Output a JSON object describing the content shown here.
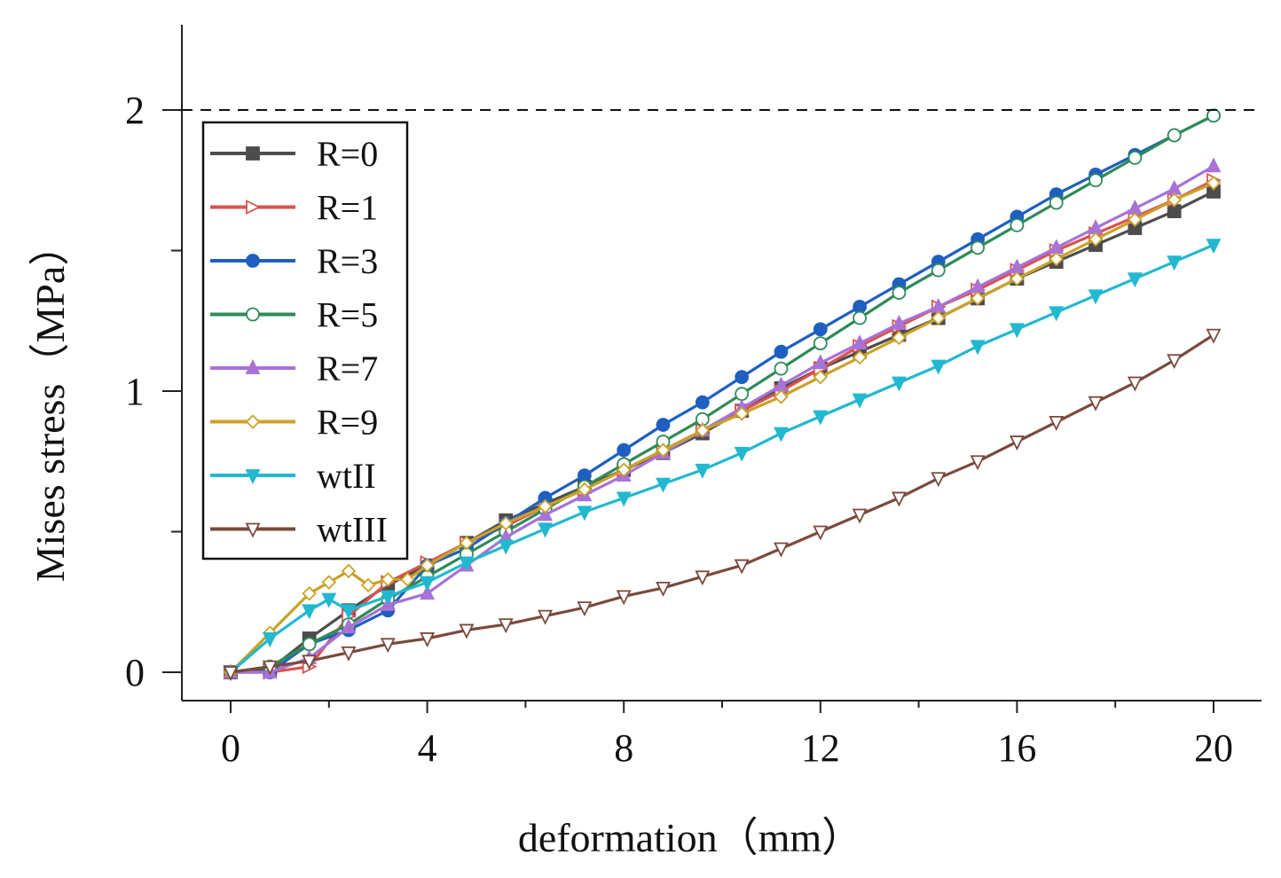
{
  "chart_data": {
    "type": "line",
    "title": "",
    "xlabel": "deformation（mm）",
    "ylabel": "Mises stress（MPa）",
    "xlim": [
      -1,
      20.8
    ],
    "ylim": [
      -0.1,
      2.3
    ],
    "xticks": [
      0,
      4,
      8,
      12,
      16,
      20
    ],
    "xtick_labels": [
      "0",
      "4",
      "8",
      "12",
      "16",
      "20"
    ],
    "yticks": [
      0,
      1,
      2
    ],
    "ytick_labels": [
      "0",
      "1",
      "2"
    ],
    "minor_xticks": [
      2,
      6,
      10,
      14,
      18
    ],
    "minor_yticks": [
      0.5,
      1.5
    ],
    "reference_line": {
      "y": 2,
      "style": "dashed"
    },
    "legend_position": "top-left",
    "series": [
      {
        "name": "R=0",
        "color": "#4d4d4d",
        "marker": "square-filled",
        "x": [
          0,
          0.8,
          1.6,
          2.4,
          3.2,
          4,
          4.8,
          5.6,
          6.4,
          7.2,
          8,
          8.8,
          9.6,
          10.4,
          11.2,
          12,
          12.8,
          13.6,
          14.4,
          15.2,
          16,
          16.8,
          17.6,
          18.4,
          19.2,
          20
        ],
        "y": [
          0,
          0.01,
          0.12,
          0.22,
          0.31,
          0.38,
          0.46,
          0.54,
          0.6,
          0.66,
          0.72,
          0.78,
          0.85,
          0.93,
          1.01,
          1.08,
          1.14,
          1.2,
          1.26,
          1.33,
          1.4,
          1.46,
          1.52,
          1.58,
          1.64,
          1.71
        ]
      },
      {
        "name": "R=1",
        "color": "#d9534f",
        "marker": "triangle-right-open",
        "x": [
          0,
          0.8,
          1.6,
          2.4,
          3.2,
          4,
          4.8,
          5.6,
          6.4,
          7.2,
          8,
          8.8,
          9.6,
          10.4,
          11.2,
          12,
          12.8,
          13.6,
          14.4,
          15.2,
          16,
          16.8,
          17.6,
          18.4,
          19.2,
          20
        ],
        "y": [
          0,
          0,
          0.02,
          0.2,
          0.32,
          0.39,
          0.46,
          0.52,
          0.59,
          0.65,
          0.72,
          0.79,
          0.86,
          0.93,
          1.0,
          1.08,
          1.16,
          1.23,
          1.3,
          1.36,
          1.43,
          1.5,
          1.56,
          1.62,
          1.68,
          1.75
        ]
      },
      {
        "name": "R=3",
        "color": "#1f5fbf",
        "marker": "circle-filled",
        "x": [
          0,
          0.8,
          1.6,
          2.4,
          3.2,
          4,
          4.8,
          5.6,
          6.4,
          7.2,
          8,
          8.8,
          9.6,
          10.4,
          11.2,
          12,
          12.8,
          13.6,
          14.4,
          15.2,
          16,
          16.8,
          17.6,
          18.4,
          19.2,
          20
        ],
        "y": [
          0,
          0,
          0.1,
          0.15,
          0.22,
          0.38,
          0.44,
          0.53,
          0.62,
          0.7,
          0.79,
          0.88,
          0.96,
          1.05,
          1.14,
          1.22,
          1.3,
          1.38,
          1.46,
          1.54,
          1.62,
          1.7,
          1.77,
          1.84,
          1.91,
          1.98
        ]
      },
      {
        "name": "R=5",
        "color": "#2e8b57",
        "marker": "circle-open",
        "x": [
          0,
          0.8,
          1.6,
          2.4,
          3.2,
          4,
          4.8,
          5.6,
          6.4,
          7.2,
          8,
          8.8,
          9.6,
          10.4,
          11.2,
          12,
          12.8,
          13.6,
          14.4,
          15.2,
          16,
          16.8,
          17.6,
          18.4,
          19.2,
          20
        ],
        "y": [
          0,
          0.02,
          0.1,
          0.17,
          0.26,
          0.34,
          0.42,
          0.5,
          0.58,
          0.66,
          0.74,
          0.82,
          0.9,
          0.99,
          1.08,
          1.17,
          1.26,
          1.35,
          1.43,
          1.51,
          1.59,
          1.67,
          1.75,
          1.83,
          1.91,
          1.98
        ]
      },
      {
        "name": "R=7",
        "color": "#a872d6",
        "marker": "triangle-up-filled",
        "x": [
          0,
          0.8,
          1.6,
          2.4,
          3.2,
          4,
          4.8,
          5.6,
          6.4,
          7.2,
          8,
          8.8,
          9.6,
          10.4,
          11.2,
          12,
          12.8,
          13.6,
          14.4,
          15.2,
          16,
          16.8,
          17.6,
          18.4,
          19.2,
          20
        ],
        "y": [
          0,
          0,
          0.05,
          0.16,
          0.24,
          0.28,
          0.38,
          0.48,
          0.56,
          0.63,
          0.7,
          0.78,
          0.86,
          0.94,
          1.02,
          1.1,
          1.17,
          1.24,
          1.3,
          1.37,
          1.44,
          1.51,
          1.58,
          1.65,
          1.72,
          1.8
        ]
      },
      {
        "name": "R=9",
        "color": "#c9a227",
        "marker": "diamond-open",
        "x": [
          0,
          0.8,
          1.6,
          2.0,
          2.4,
          2.8,
          3.2,
          3.6,
          4,
          4.8,
          5.6,
          6.4,
          7.2,
          8,
          8.8,
          9.6,
          10.4,
          11.2,
          12,
          12.8,
          13.6,
          14.4,
          15.2,
          16,
          16.8,
          17.6,
          18.4,
          19.2,
          20
        ],
        "y": [
          0,
          0.14,
          0.28,
          0.32,
          0.36,
          0.31,
          0.33,
          0.33,
          0.38,
          0.46,
          0.53,
          0.59,
          0.65,
          0.72,
          0.79,
          0.86,
          0.92,
          0.98,
          1.05,
          1.12,
          1.19,
          1.26,
          1.33,
          1.4,
          1.47,
          1.54,
          1.61,
          1.68,
          1.74
        ]
      },
      {
        "name": "wtII",
        "color": "#22b8cf",
        "marker": "triangle-down-filled",
        "x": [
          0,
          0.8,
          1.6,
          2.0,
          2.4,
          3.2,
          4,
          4.8,
          5.6,
          6.4,
          7.2,
          8,
          8.8,
          9.6,
          10.4,
          11.2,
          12,
          12.8,
          13.6,
          14.4,
          15.2,
          16,
          16.8,
          17.6,
          18.4,
          19.2,
          20
        ],
        "y": [
          0,
          0.12,
          0.22,
          0.26,
          0.22,
          0.27,
          0.32,
          0.39,
          0.45,
          0.51,
          0.57,
          0.62,
          0.67,
          0.72,
          0.78,
          0.85,
          0.91,
          0.97,
          1.03,
          1.09,
          1.16,
          1.22,
          1.28,
          1.34,
          1.4,
          1.46,
          1.52
        ]
      },
      {
        "name": "wtIII",
        "color": "#7a4a3d",
        "marker": "triangle-down-open",
        "x": [
          0,
          0.8,
          1.6,
          2.4,
          3.2,
          4,
          4.8,
          5.6,
          6.4,
          7.2,
          8,
          8.8,
          9.6,
          10.4,
          11.2,
          12,
          12.8,
          13.6,
          14.4,
          15.2,
          16,
          16.8,
          17.6,
          18.4,
          19.2,
          20
        ],
        "y": [
          0,
          0.02,
          0.04,
          0.07,
          0.1,
          0.12,
          0.15,
          0.17,
          0.2,
          0.23,
          0.27,
          0.3,
          0.34,
          0.38,
          0.44,
          0.5,
          0.56,
          0.62,
          0.69,
          0.75,
          0.82,
          0.89,
          0.96,
          1.03,
          1.11,
          1.2
        ]
      }
    ]
  }
}
